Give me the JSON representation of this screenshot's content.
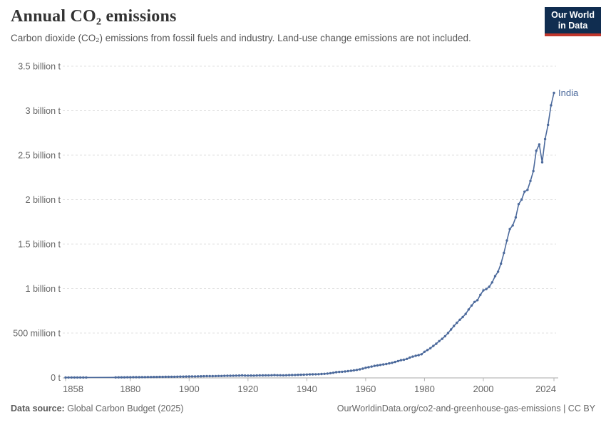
{
  "header": {
    "title": "Annual CO₂ emissions",
    "subtitle": "Carbon dioxide (CO₂) emissions from fossil fuels and industry. Land-use change emissions are not included."
  },
  "logo": {
    "line1": "Our World",
    "line2": "in Data"
  },
  "footer": {
    "source_label": "Data source:",
    "source_value": " Global Carbon Budget (2025)",
    "attribution": "OurWorldinData.org/co2-and-greenhouse-gas-emissions | CC BY"
  },
  "colors": {
    "series": "#4c6a9c",
    "grid": "#e0e0e0",
    "axis": "#aaaaaa",
    "tick": "#b3b3b3",
    "tick_label": "#666666",
    "logo_bg": "#102d50",
    "logo_accent": "#c0362c"
  },
  "chart_data": {
    "type": "line",
    "title": "Annual CO₂ emissions",
    "subtitle": "Carbon dioxide (CO₂) emissions from fossil fuels and industry. Land-use change emissions are not included.",
    "unit": "tonnes of CO₂",
    "entity_label": "India",
    "grid": true,
    "x_ticks": [
      1858,
      1880,
      1900,
      1920,
      1940,
      1960,
      1980,
      2000,
      2024
    ],
    "xlim": [
      1858,
      2024
    ],
    "ylim_mt": [
      0,
      3500
    ],
    "y_ticks": [
      {
        "value_mt": 0,
        "label": "0 t"
      },
      {
        "value_mt": 500,
        "label": "500 million t"
      },
      {
        "value_mt": 1000,
        "label": "1 billion t"
      },
      {
        "value_mt": 1500,
        "label": "1.5 billion t"
      },
      {
        "value_mt": 2000,
        "label": "2 billion t"
      },
      {
        "value_mt": 2500,
        "label": "2.5 billion t"
      },
      {
        "value_mt": 3000,
        "label": "3 billion t"
      },
      {
        "value_mt": 3500,
        "label": "3.5 billion t"
      }
    ],
    "series": [
      {
        "name": "India",
        "start_year": 1858,
        "end_year": 2024,
        "values_mt": [
          0.4,
          0.5,
          0.6,
          0.7,
          0.8,
          0.9,
          1.0,
          1.1,
          null,
          null,
          null,
          null,
          null,
          null,
          null,
          null,
          null,
          2.0,
          2.2,
          2.5,
          2.7,
          3.0,
          3.4,
          3.8,
          4.1,
          4.4,
          4.7,
          5.0,
          5.3,
          5.7,
          6.1,
          6.5,
          7.0,
          7.4,
          7.7,
          8.1,
          8.5,
          9.0,
          9.5,
          10.1,
          10.7,
          11.3,
          12.0,
          12.6,
          13.1,
          13.7,
          14.4,
          15.0,
          15.6,
          16.4,
          16.0,
          16.8,
          17.5,
          18.0,
          18.8,
          19.8,
          20.3,
          20.8,
          21.6,
          22.6,
          23.8,
          22.4,
          21.8,
          22.6,
          22.0,
          23.2,
          23.6,
          24.0,
          24.5,
          25.2,
          25.8,
          26.8,
          26.0,
          25.4,
          25.2,
          25.8,
          26.8,
          28.0,
          29.2,
          30.6,
          31.2,
          32.4,
          34,
          35,
          36,
          37,
          38,
          40,
          42,
          45,
          49,
          54,
          60,
          63,
          65,
          68,
          72,
          76,
          81,
          86,
          92,
          100,
          110,
          116,
          123,
          131,
          136,
          142,
          147,
          152,
          159,
          166,
          175,
          185,
          195,
          200,
          210,
          225,
          235,
          245,
          252,
          262,
          290,
          310,
          330,
          355,
          380,
          410,
          435,
          465,
          500,
          540,
          580,
          615,
          650,
          680,
          715,
          765,
          810,
          850,
          870,
          930,
          980,
          995,
          1020,
          1070,
          1140,
          1190,
          1280,
          1400,
          1540,
          1670,
          1710,
          1800,
          1950,
          2000,
          2090,
          2110,
          2210,
          2320,
          2550,
          2620,
          2420,
          2680,
          2840,
          3060,
          3200
        ]
      }
    ]
  }
}
